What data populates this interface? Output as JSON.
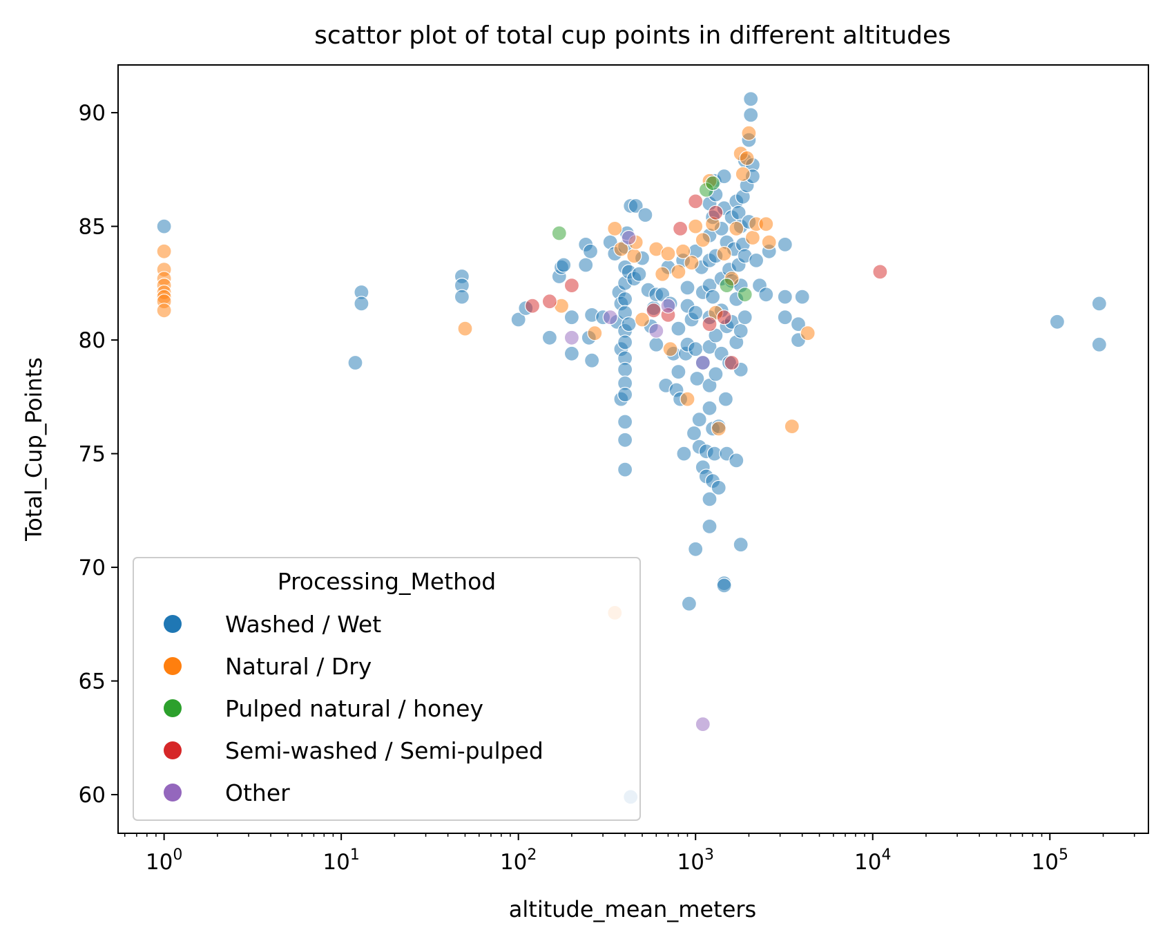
{
  "chart_data": {
    "type": "scatter",
    "title": "scattor plot of total cup points in different altitudes",
    "xlabel": "altitude_mean_meters",
    "ylabel": "Total_Cup_Points",
    "x_scale": "log",
    "xlim": [
      0.55,
      360000
    ],
    "ylim": [
      58.3,
      92.1
    ],
    "x_ticks": [
      {
        "value": 1,
        "base": "10",
        "exp": "0"
      },
      {
        "value": 10,
        "base": "10",
        "exp": "1"
      },
      {
        "value": 100,
        "base": "10",
        "exp": "2"
      },
      {
        "value": 1000,
        "base": "10",
        "exp": "3"
      },
      {
        "value": 10000,
        "base": "10",
        "exp": "4"
      },
      {
        "value": 100000,
        "base": "10",
        "exp": "5"
      }
    ],
    "y_ticks": [
      60,
      65,
      70,
      75,
      80,
      85,
      90
    ],
    "y_tick_labels": [
      "60",
      "65",
      "70",
      "75",
      "80",
      "85",
      "90"
    ],
    "grid": false,
    "legend": {
      "title": "Processing_Method",
      "placement": "lower-left"
    },
    "series": [
      {
        "name": "Washed / Wet",
        "color": "#1f77b4",
        "points": [
          [
            1,
            85.0
          ],
          [
            12,
            79.0
          ],
          [
            13,
            82.1
          ],
          [
            13,
            81.6
          ],
          [
            48,
            82.8
          ],
          [
            48,
            82.4
          ],
          [
            48,
            81.9
          ],
          [
            100,
            80.9
          ],
          [
            110,
            81.4
          ],
          [
            150,
            80.1
          ],
          [
            170,
            82.8
          ],
          [
            175,
            83.2
          ],
          [
            180,
            83.3
          ],
          [
            200,
            81.0
          ],
          [
            200,
            79.4
          ],
          [
            240,
            84.2
          ],
          [
            240,
            83.3
          ],
          [
            250,
            80.1
          ],
          [
            255,
            83.9
          ],
          [
            260,
            79.1
          ],
          [
            260,
            81.1
          ],
          [
            300,
            81.0
          ],
          [
            330,
            84.3
          ],
          [
            350,
            83.8
          ],
          [
            360,
            80.8
          ],
          [
            370,
            82.1
          ],
          [
            380,
            81.6
          ],
          [
            380,
            79.6
          ],
          [
            380,
            77.4
          ],
          [
            400,
            84.1
          ],
          [
            400,
            83.2
          ],
          [
            400,
            82.5
          ],
          [
            400,
            81.8
          ],
          [
            400,
            81.2
          ],
          [
            400,
            80.4
          ],
          [
            400,
            79.9
          ],
          [
            400,
            79.2
          ],
          [
            400,
            78.7
          ],
          [
            400,
            78.1
          ],
          [
            400,
            77.6
          ],
          [
            400,
            76.4
          ],
          [
            400,
            75.6
          ],
          [
            400,
            74.3
          ],
          [
            410,
            84.7
          ],
          [
            420,
            83.0
          ],
          [
            420,
            80.7
          ],
          [
            430,
            85.9
          ],
          [
            450,
            82.7
          ],
          [
            460,
            85.9
          ],
          [
            480,
            82.9
          ],
          [
            500,
            83.6
          ],
          [
            520,
            85.5
          ],
          [
            540,
            82.2
          ],
          [
            560,
            80.6
          ],
          [
            580,
            81.4
          ],
          [
            600,
            82.0
          ],
          [
            600,
            79.8
          ],
          [
            650,
            82.0
          ],
          [
            680,
            78.0
          ],
          [
            700,
            83.2
          ],
          [
            720,
            81.6
          ],
          [
            750,
            79.4
          ],
          [
            780,
            77.8
          ],
          [
            800,
            80.5
          ],
          [
            800,
            78.6
          ],
          [
            820,
            77.4
          ],
          [
            850,
            83.5
          ],
          [
            860,
            75.0
          ],
          [
            880,
            79.4
          ],
          [
            900,
            82.3
          ],
          [
            900,
            81.5
          ],
          [
            900,
            79.8
          ],
          [
            920,
            68.4
          ],
          [
            950,
            80.9
          ],
          [
            980,
            75.9
          ],
          [
            1000,
            83.9
          ],
          [
            1000,
            81.2
          ],
          [
            1000,
            79.6
          ],
          [
            1000,
            70.8
          ],
          [
            1020,
            78.3
          ],
          [
            1050,
            76.5
          ],
          [
            1050,
            75.3
          ],
          [
            1080,
            83.2
          ],
          [
            1100,
            82.1
          ],
          [
            1100,
            79.0
          ],
          [
            1100,
            74.4
          ],
          [
            1150,
            75.1
          ],
          [
            1150,
            74.0
          ],
          [
            1200,
            86.0
          ],
          [
            1200,
            84.6
          ],
          [
            1200,
            83.5
          ],
          [
            1200,
            82.4
          ],
          [
            1200,
            81.0
          ],
          [
            1200,
            79.7
          ],
          [
            1200,
            78.0
          ],
          [
            1200,
            77.0
          ],
          [
            1200,
            73.0
          ],
          [
            1200,
            71.8
          ],
          [
            1250,
            85.4
          ],
          [
            1250,
            81.9
          ],
          [
            1250,
            76.1
          ],
          [
            1250,
            73.8
          ],
          [
            1280,
            87.0
          ],
          [
            1280,
            75.0
          ],
          [
            1300,
            86.4
          ],
          [
            1300,
            83.7
          ],
          [
            1300,
            80.2
          ],
          [
            1300,
            78.5
          ],
          [
            1350,
            76.2
          ],
          [
            1350,
            73.5
          ],
          [
            1400,
            84.9
          ],
          [
            1400,
            82.7
          ],
          [
            1400,
            81.3
          ],
          [
            1400,
            79.4
          ],
          [
            1450,
            87.2
          ],
          [
            1450,
            85.8
          ],
          [
            1450,
            69.3
          ],
          [
            1450,
            69.2
          ],
          [
            1480,
            77.4
          ],
          [
            1500,
            84.3
          ],
          [
            1500,
            80.6
          ],
          [
            1500,
            75.0
          ],
          [
            1550,
            83.1
          ],
          [
            1550,
            79.0
          ],
          [
            1600,
            85.4
          ],
          [
            1600,
            82.6
          ],
          [
            1600,
            80.8
          ],
          [
            1650,
            84.0
          ],
          [
            1700,
            86.1
          ],
          [
            1700,
            81.8
          ],
          [
            1700,
            79.9
          ],
          [
            1700,
            74.7
          ],
          [
            1750,
            85.6
          ],
          [
            1750,
            83.3
          ],
          [
            1800,
            85.0
          ],
          [
            1800,
            82.4
          ],
          [
            1800,
            80.4
          ],
          [
            1800,
            78.7
          ],
          [
            1800,
            71.0
          ],
          [
            1850,
            86.3
          ],
          [
            1850,
            84.2
          ],
          [
            1900,
            87.9
          ],
          [
            1900,
            83.7
          ],
          [
            1900,
            81.0
          ],
          [
            1950,
            86.8
          ],
          [
            2000,
            85.2
          ],
          [
            2000,
            88.8
          ],
          [
            2050,
            90.6
          ],
          [
            2050,
            89.9
          ],
          [
            2100,
            87.7
          ],
          [
            2100,
            87.2
          ],
          [
            2200,
            83.5
          ],
          [
            2300,
            82.4
          ],
          [
            2500,
            82.0
          ],
          [
            2600,
            83.9
          ],
          [
            3200,
            84.2
          ],
          [
            3200,
            81.9
          ],
          [
            3200,
            81.0
          ],
          [
            3800,
            80.7
          ],
          [
            3800,
            80.0
          ],
          [
            4000,
            81.9
          ],
          [
            110000,
            80.8
          ],
          [
            190000,
            81.6
          ],
          [
            190000,
            79.8
          ],
          [
            430,
            59.9
          ]
        ]
      },
      {
        "name": "Natural / Dry",
        "color": "#ff7f0e",
        "points": [
          [
            1,
            83.9
          ],
          [
            1,
            83.1
          ],
          [
            1,
            82.7
          ],
          [
            1,
            82.4
          ],
          [
            1,
            82.1
          ],
          [
            1,
            81.9
          ],
          [
            1,
            81.7
          ],
          [
            1,
            81.3
          ],
          [
            50,
            80.5
          ],
          [
            175,
            81.5
          ],
          [
            270,
            80.3
          ],
          [
            350,
            84.9
          ],
          [
            350,
            68.0
          ],
          [
            380,
            84.0
          ],
          [
            450,
            83.7
          ],
          [
            460,
            84.3
          ],
          [
            500,
            80.9
          ],
          [
            600,
            84.0
          ],
          [
            650,
            82.9
          ],
          [
            700,
            83.8
          ],
          [
            720,
            79.6
          ],
          [
            800,
            83.0
          ],
          [
            850,
            83.9
          ],
          [
            900,
            77.4
          ],
          [
            950,
            83.4
          ],
          [
            1000,
            85.0
          ],
          [
            1100,
            84.4
          ],
          [
            1200,
            87.0
          ],
          [
            1250,
            85.1
          ],
          [
            1300,
            81.2
          ],
          [
            1350,
            76.1
          ],
          [
            1450,
            83.8
          ],
          [
            1600,
            82.7
          ],
          [
            1700,
            84.9
          ],
          [
            1800,
            88.2
          ],
          [
            1850,
            87.3
          ],
          [
            1950,
            88.0
          ],
          [
            2000,
            89.1
          ],
          [
            2100,
            84.5
          ],
          [
            2200,
            85.1
          ],
          [
            2500,
            85.1
          ],
          [
            2600,
            84.3
          ],
          [
            3500,
            76.2
          ],
          [
            4300,
            80.3
          ]
        ]
      },
      {
        "name": "Pulped natural / honey",
        "color": "#2ca02c",
        "points": [
          [
            170,
            84.7
          ],
          [
            1150,
            86.6
          ],
          [
            1250,
            86.9
          ],
          [
            1500,
            82.4
          ],
          [
            1900,
            82.0
          ]
        ]
      },
      {
        "name": "Semi-washed / Semi-pulped",
        "color": "#d62728",
        "points": [
          [
            120,
            81.5
          ],
          [
            150,
            81.7
          ],
          [
            200,
            82.4
          ],
          [
            580,
            81.3
          ],
          [
            700,
            81.1
          ],
          [
            820,
            84.9
          ],
          [
            1000,
            86.1
          ],
          [
            1200,
            80.7
          ],
          [
            1300,
            85.6
          ],
          [
            1450,
            81.0
          ],
          [
            1600,
            79.0
          ],
          [
            11000,
            83.0
          ]
        ]
      },
      {
        "name": "Other",
        "color": "#9467bd",
        "points": [
          [
            200,
            80.1
          ],
          [
            330,
            81.0
          ],
          [
            420,
            84.5
          ],
          [
            600,
            80.4
          ],
          [
            700,
            81.5
          ],
          [
            1100,
            79.0
          ],
          [
            1100,
            63.1
          ]
        ]
      }
    ]
  }
}
